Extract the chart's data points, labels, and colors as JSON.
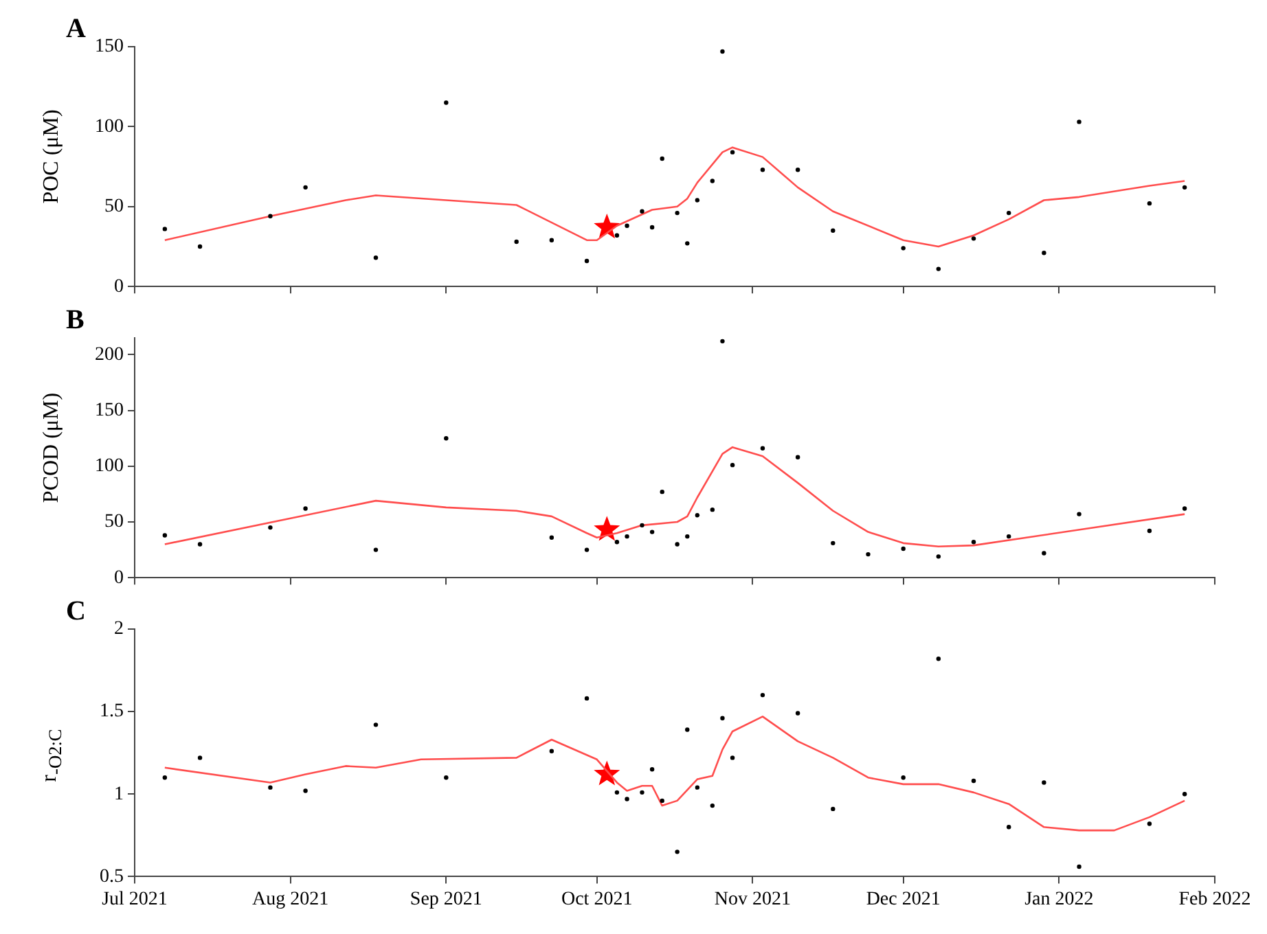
{
  "chart_data": [
    {
      "type": "scatter",
      "title": "A",
      "ylabel": "POC (μM)",
      "xlim": [
        "2021-07-01",
        "2022-02-01"
      ],
      "xticks": [
        {
          "value": "2021-07-01",
          "label": null
        },
        {
          "value": "2021-08-01",
          "label": null
        },
        {
          "value": "2021-09-01",
          "label": null
        },
        {
          "value": "2021-10-01",
          "label": null
        },
        {
          "value": "2021-11-01",
          "label": null
        },
        {
          "value": "2021-12-01",
          "label": null
        },
        {
          "value": "2022-01-01",
          "label": null
        },
        {
          "value": "2022-02-01",
          "label": null
        }
      ],
      "ylim": [
        0,
        150
      ],
      "yticks": [
        0,
        50,
        100,
        150
      ],
      "tick_labels": "y",
      "grid": false,
      "legend": false,
      "series": [
        {
          "type": "scatter",
          "marker": "circle",
          "color": "#000000",
          "x": [
            "2021-07-07",
            "2021-07-14",
            "2021-07-28",
            "2021-08-04",
            "2021-08-18",
            "2021-09-01",
            "2021-09-15",
            "2021-09-22",
            "2021-09-29",
            "2021-10-05",
            "2021-10-07",
            "2021-10-10",
            "2021-10-12",
            "2021-10-14",
            "2021-10-17",
            "2021-10-19",
            "2021-10-21",
            "2021-10-24",
            "2021-10-26",
            "2021-10-28",
            "2021-11-03",
            "2021-11-10",
            "2021-11-17",
            "2021-12-01",
            "2021-12-08",
            "2021-12-15",
            "2021-12-22",
            "2021-12-29",
            "2022-01-05",
            "2022-01-19",
            "2022-01-26"
          ],
          "values": [
            36,
            25,
            44,
            62,
            18,
            115,
            28,
            29,
            16,
            32,
            38,
            47,
            37,
            80,
            46,
            27,
            54,
            66,
            147,
            84,
            73,
            73,
            35,
            24,
            11,
            30,
            46,
            21,
            103,
            52,
            62
          ]
        },
        {
          "type": "line",
          "marker": "none",
          "color": "#ff4d4d",
          "x": [
            "2021-07-07",
            "2021-07-28",
            "2021-08-12",
            "2021-08-18",
            "2021-09-01",
            "2021-09-15",
            "2021-09-29",
            "2021-10-01",
            "2021-10-05",
            "2021-10-12",
            "2021-10-17",
            "2021-10-19",
            "2021-10-21",
            "2021-10-26",
            "2021-10-28",
            "2021-11-03",
            "2021-11-10",
            "2021-11-17",
            "2021-12-01",
            "2021-12-08",
            "2021-12-15",
            "2021-12-22",
            "2021-12-29",
            "2022-01-05",
            "2022-01-19",
            "2022-01-26"
          ],
          "values": [
            29,
            44,
            54,
            57,
            54,
            51,
            29,
            29,
            38,
            48,
            50,
            55,
            65,
            84,
            87,
            81,
            62,
            47,
            29,
            25,
            32,
            42,
            54,
            56,
            63,
            66
          ]
        },
        {
          "type": "scatter",
          "marker": "star",
          "color": "#ff0000",
          "x": [
            "2021-10-03"
          ],
          "values": [
            37
          ]
        }
      ]
    },
    {
      "type": "scatter",
      "title": "B",
      "ylabel": "PCOD (μM)",
      "xlim": [
        "2021-07-01",
        "2022-02-01"
      ],
      "xticks": [
        {
          "value": "2021-07-01",
          "label": null
        },
        {
          "value": "2021-08-01",
          "label": null
        },
        {
          "value": "2021-09-01",
          "label": null
        },
        {
          "value": "2021-10-01",
          "label": null
        },
        {
          "value": "2021-11-01",
          "label": null
        },
        {
          "value": "2021-12-01",
          "label": null
        },
        {
          "value": "2022-01-01",
          "label": null
        },
        {
          "value": "2022-02-01",
          "label": null
        }
      ],
      "ylim": [
        0,
        215
      ],
      "yticks": [
        0,
        50,
        100,
        150,
        200
      ],
      "tick_labels": "y",
      "grid": false,
      "legend": false,
      "series": [
        {
          "type": "scatter",
          "marker": "circle",
          "color": "#000000",
          "x": [
            "2021-07-07",
            "2021-07-14",
            "2021-07-28",
            "2021-08-04",
            "2021-08-18",
            "2021-09-01",
            "2021-09-22",
            "2021-09-29",
            "2021-10-05",
            "2021-10-07",
            "2021-10-10",
            "2021-10-12",
            "2021-10-14",
            "2021-10-17",
            "2021-10-19",
            "2021-10-21",
            "2021-10-24",
            "2021-10-26",
            "2021-10-28",
            "2021-11-03",
            "2021-11-10",
            "2021-11-17",
            "2021-11-24",
            "2021-12-01",
            "2021-12-08",
            "2021-12-15",
            "2021-12-22",
            "2021-12-29",
            "2022-01-05",
            "2022-01-19",
            "2022-01-26"
          ],
          "values": [
            38,
            30,
            45,
            62,
            25,
            125,
            36,
            25,
            32,
            37,
            47,
            41,
            77,
            30,
            37,
            56,
            61,
            212,
            101,
            116,
            108,
            31,
            21,
            26,
            19,
            32,
            37,
            22,
            57,
            42,
            62
          ]
        },
        {
          "type": "line",
          "marker": "none",
          "color": "#ff4d4d",
          "x": [
            "2021-07-07",
            "2021-08-18",
            "2021-09-01",
            "2021-09-15",
            "2021-09-22",
            "2021-09-29",
            "2021-10-01",
            "2021-10-05",
            "2021-10-10",
            "2021-10-17",
            "2021-10-19",
            "2021-10-21",
            "2021-10-26",
            "2021-10-28",
            "2021-11-03",
            "2021-11-10",
            "2021-11-17",
            "2021-11-24",
            "2021-12-01",
            "2021-12-08",
            "2021-12-15",
            "2022-01-26"
          ],
          "values": [
            30,
            69,
            63,
            60,
            55,
            40,
            36,
            40,
            47,
            50,
            55,
            72,
            111,
            117,
            109,
            85,
            60,
            41,
            31,
            28,
            29,
            57
          ]
        },
        {
          "type": "scatter",
          "marker": "star",
          "color": "#ff0000",
          "x": [
            "2021-10-03"
          ],
          "values": [
            43
          ]
        }
      ]
    },
    {
      "type": "scatter",
      "title": "C",
      "ylabel": "r$_{-O2:C}$",
      "xlim": [
        "2021-07-01",
        "2022-02-01"
      ],
      "xticks": [
        {
          "value": "2021-07-01",
          "label": "Jul 2021"
        },
        {
          "value": "2021-08-01",
          "label": "Aug 2021"
        },
        {
          "value": "2021-09-01",
          "label": "Sep 2021"
        },
        {
          "value": "2021-10-01",
          "label": "Oct 2021"
        },
        {
          "value": "2021-11-01",
          "label": "Nov 2021"
        },
        {
          "value": "2021-12-01",
          "label": "Dec 2021"
        },
        {
          "value": "2022-01-01",
          "label": "Jan 2022"
        },
        {
          "value": "2022-02-01",
          "label": "Feb 2022"
        }
      ],
      "ylim": [
        0.5,
        2
      ],
      "yticks": [
        0.5,
        1,
        1.5,
        2
      ],
      "grid": false,
      "legend": false,
      "series": [
        {
          "type": "scatter",
          "marker": "circle",
          "color": "#000000",
          "x": [
            "2021-07-07",
            "2021-07-14",
            "2021-07-28",
            "2021-08-04",
            "2021-08-18",
            "2021-09-01",
            "2021-09-22",
            "2021-09-29",
            "2021-10-05",
            "2021-10-07",
            "2021-10-10",
            "2021-10-12",
            "2021-10-14",
            "2021-10-17",
            "2021-10-19",
            "2021-10-21",
            "2021-10-24",
            "2021-10-26",
            "2021-10-28",
            "2021-11-03",
            "2021-11-10",
            "2021-11-17",
            "2021-12-01",
            "2021-12-08",
            "2021-12-15",
            "2021-12-22",
            "2021-12-29",
            "2022-01-05",
            "2022-01-19",
            "2022-01-26"
          ],
          "values": [
            1.1,
            1.22,
            1.04,
            1.02,
            1.42,
            1.1,
            1.26,
            1.58,
            1.01,
            0.97,
            1.01,
            1.15,
            0.96,
            0.65,
            1.39,
            1.04,
            0.93,
            1.46,
            1.22,
            1.6,
            1.49,
            0.91,
            1.1,
            1.82,
            1.08,
            0.8,
            1.07,
            0.56,
            0.82,
            1.0
          ]
        },
        {
          "type": "line",
          "marker": "none",
          "color": "#ff4d4d",
          "x": [
            "2021-07-07",
            "2021-07-28",
            "2021-08-04",
            "2021-08-12",
            "2021-08-18",
            "2021-08-27",
            "2021-09-15",
            "2021-09-22",
            "2021-10-01",
            "2021-10-05",
            "2021-10-07",
            "2021-10-10",
            "2021-10-12",
            "2021-10-14",
            "2021-10-17",
            "2021-10-21",
            "2021-10-24",
            "2021-10-26",
            "2021-10-28",
            "2021-11-03",
            "2021-11-10",
            "2021-11-17",
            "2021-11-24",
            "2021-12-01",
            "2021-12-08",
            "2021-12-15",
            "2021-12-22",
            "2021-12-29",
            "2022-01-05",
            "2022-01-12",
            "2022-01-19",
            "2022-01-26"
          ],
          "values": [
            1.16,
            1.07,
            1.12,
            1.17,
            1.16,
            1.21,
            1.22,
            1.33,
            1.21,
            1.07,
            1.02,
            1.05,
            1.05,
            0.93,
            0.96,
            1.09,
            1.11,
            1.27,
            1.38,
            1.47,
            1.32,
            1.22,
            1.1,
            1.06,
            1.06,
            1.01,
            0.94,
            0.8,
            0.78,
            0.78,
            0.86,
            0.96
          ]
        },
        {
          "type": "scatter",
          "marker": "star",
          "color": "#ff0000",
          "x": [
            "2021-10-03"
          ],
          "values": [
            1.12
          ]
        }
      ]
    }
  ]
}
